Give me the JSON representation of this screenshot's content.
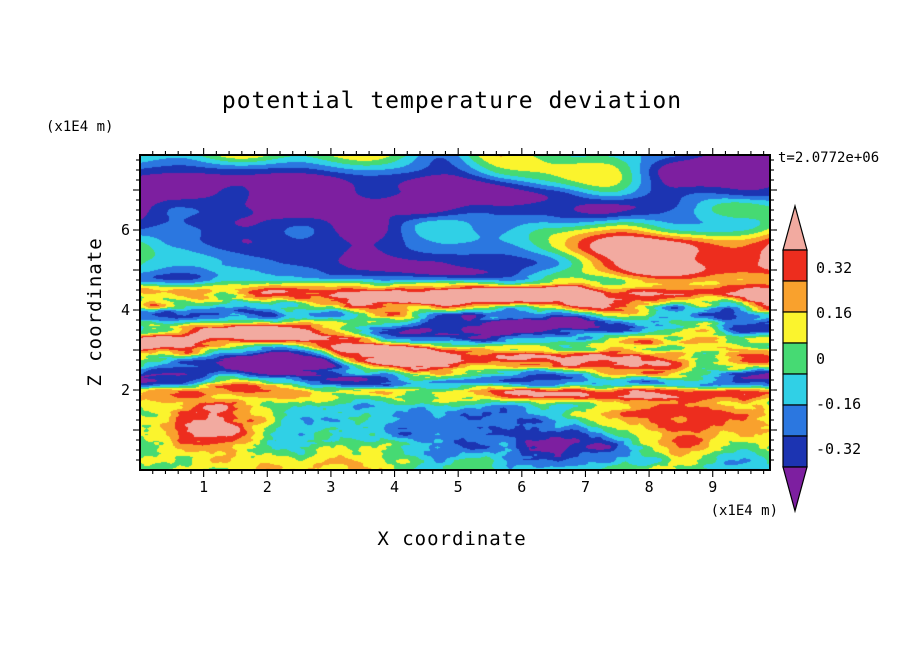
{
  "title": "potential temperature deviation",
  "annotations": {
    "time": "t=2.0772e+06"
  },
  "axes": {
    "x": {
      "label": "X coordinate",
      "units": "(x1E4 m)",
      "ticks": [
        "1",
        "2",
        "3",
        "4",
        "5",
        "6",
        "7",
        "8",
        "9"
      ],
      "range": [
        0,
        9.9
      ]
    },
    "z": {
      "label": "Z coordinate",
      "units": "(x1E4 m)",
      "ticks": [
        "2",
        "4",
        "6"
      ],
      "range": [
        0,
        7.875
      ]
    }
  },
  "colorbar": {
    "labels": [
      "0.32",
      "0.16",
      "0",
      "-0.16",
      "-0.32"
    ]
  },
  "chart_data": {
    "type": "heatmap",
    "title": "potential temperature deviation",
    "xlabel": "X coordinate (x1E4 m)",
    "ylabel": "Z coordinate (x1E4 m)",
    "time_annotation": "t=2.0772e+06",
    "x_range": [
      0,
      9.9
    ],
    "z_range": [
      0,
      7.875
    ],
    "x_tick_values": [
      1,
      2,
      3,
      4,
      5,
      6,
      7,
      8,
      9
    ],
    "z_tick_values": [
      2,
      4,
      6
    ],
    "contour_levels": [
      -0.64,
      -0.48,
      -0.32,
      -0.16,
      0,
      0.16,
      0.32,
      0.48
    ],
    "labeled_levels": [
      0.32,
      0.16,
      0,
      -0.16,
      -0.32
    ],
    "level_colors_ascending": [
      "#7d1fa0",
      "#1c34b2",
      "#2b77e0",
      "#30d0e6",
      "#46da73",
      "#fbf42d",
      "#f9a12d",
      "#ed2d1e",
      "#f2aaa0"
    ],
    "frame_color": "#000000",
    "legend_position": "right-vertical-colorbar-with-end-arrows",
    "grid": false,
    "field_description": "Turbulent potential-temperature-deviation cross-section: surface layer (z<2) is mottled green/cyan (weak deviations) with warm yellow-orange-red plumes near x=1 and x=8.5-9.5 and a strong cold (navy) blob near x=6.8,z=0.6; strongly layered wave bands for 2<z<4.5 including a salmon band near z=1.9, purple/blue bands near z=2.2-3.2, and thin red/orange filaments near z=4; above z=4.5 large alternating strong-positive (salmon/pink) and strong-negative (purple) patches."
  }
}
